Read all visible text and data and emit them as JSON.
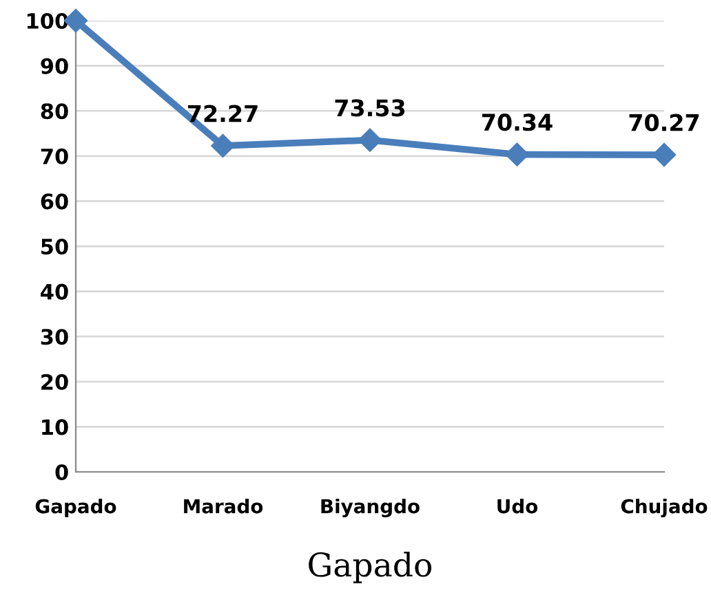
{
  "chart_data": {
    "type": "line",
    "xlabel": "Gapado",
    "categories": [
      "Gapado",
      "Marado",
      "Biyangdo",
      "Udo",
      "Chujado"
    ],
    "series": [
      {
        "color": "#4a7ebb",
        "values": [
          100,
          72.27,
          73.53,
          70.34,
          70.27
        ],
        "value_labels": [
          null,
          "72.27",
          "73.53",
          "70.34",
          "70.27"
        ]
      }
    ],
    "ylim": [
      0,
      100
    ],
    "yticks": [
      0,
      10,
      20,
      30,
      40,
      50,
      60,
      70,
      80,
      90,
      100
    ],
    "grid": "y",
    "marker": "diamond",
    "line_style": "solid",
    "legend": false
  }
}
